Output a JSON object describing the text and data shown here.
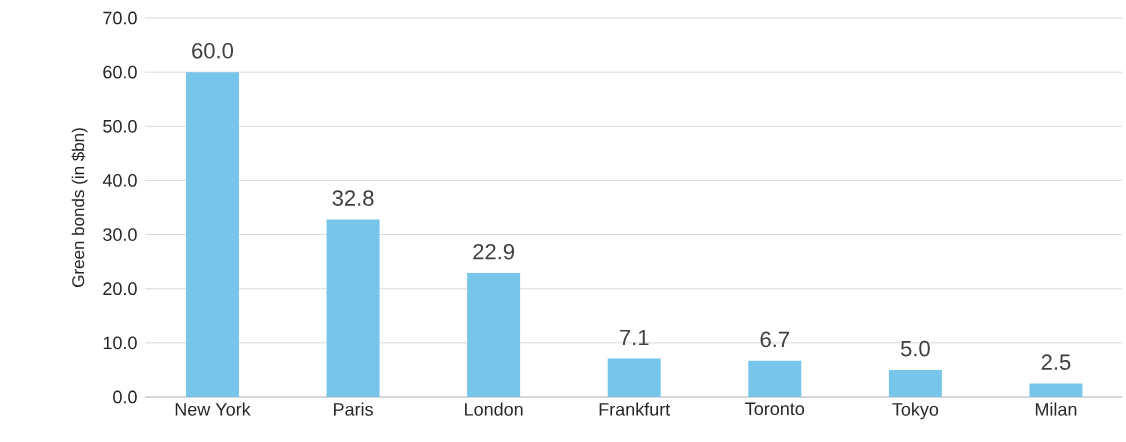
{
  "chart_data": {
    "type": "bar",
    "ylabel": "Green bonds (in $bn)",
    "categories": [
      "New York",
      "Paris",
      "London",
      "Frankfurt",
      "Toronto",
      "Tokyo",
      "Milan"
    ],
    "values": [
      60.0,
      32.8,
      22.9,
      7.1,
      6.7,
      5.0,
      2.5
    ],
    "value_labels": [
      "60.0",
      "32.8",
      "22.9",
      "7.1",
      "6.7",
      "5.0",
      "2.5"
    ],
    "color": "#77c5ea",
    "ylim": [
      0,
      70
    ],
    "yticks": [
      {
        "value": 0,
        "label": "0.0"
      },
      {
        "value": 10,
        "label": "10.0"
      },
      {
        "value": 20,
        "label": "20.0"
      },
      {
        "value": 30,
        "label": "30.0"
      },
      {
        "value": 40,
        "label": "40.0"
      },
      {
        "value": 50,
        "label": "50.0"
      },
      {
        "value": 60,
        "label": "60.0"
      },
      {
        "value": 70,
        "label": "70.0"
      }
    ],
    "grid": "y"
  }
}
